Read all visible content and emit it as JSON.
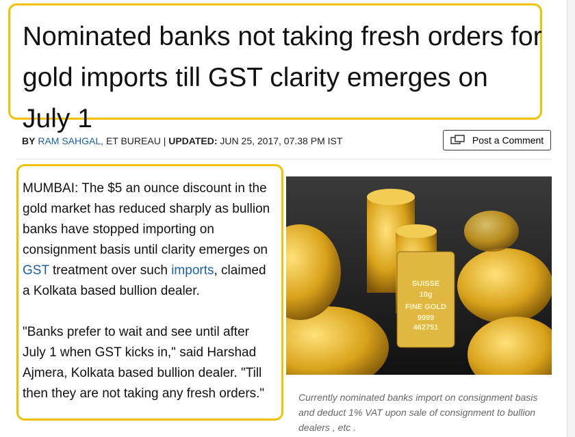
{
  "headline": "Nominated banks not taking fresh orders for gold imports till GST clarity emerges on July 1",
  "byline": {
    "by": "BY",
    "author": "RAM SAHGAL,",
    "desk": "ET BUREAU |",
    "updated_label": "UPDATED:",
    "updated": "JUN 25, 2017, 07.38 PM IST"
  },
  "comment_button": "Post a Comment",
  "body": {
    "paragraph_1": [
      "MUMBAI: The $5 an ounce discount in the gold market has reduced sharply as bullion banks have stopped importing on consignment basis until clarity emerges on",
      "GST",
      "treatment over such",
      "imports",
      ", claimed a Kolkata based bullion dealer."
    ],
    "paragraph_2": "\"Banks prefer to wait and see until after July 1 when GST kicks in,\" said Harshad Ajmera, Kolkata based bullion dealer. \"Till then they are not taking any fresh orders.\""
  },
  "image": {
    "bar_text": [
      "SUISSE",
      "10g",
      "FINE GOLD",
      "9999",
      "462751"
    ]
  },
  "caption": "Currently nominated banks import on consignment basis and deduct 1% VAT upon sale of consignment to bullion dealers , etc ."
}
